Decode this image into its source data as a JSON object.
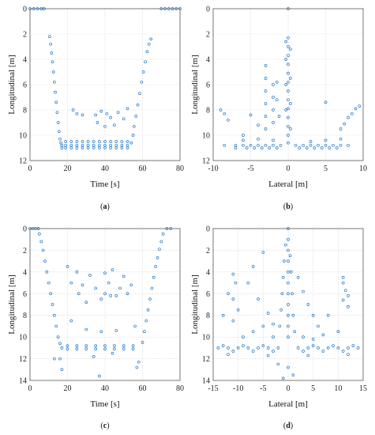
{
  "colors": {
    "marker": "#1f77c8",
    "grid": "#d9d9d9",
    "axes": "#555555"
  },
  "chart_data": [
    {
      "panel_label": "(a)",
      "type": "scatter",
      "xlabel": "Time [s]",
      "ylabel": "Longitudinal [m]",
      "xlim": [
        0,
        80
      ],
      "ylim": [
        0,
        12
      ],
      "y_reversed": true,
      "xticks": [
        "0",
        "20",
        "40",
        "60",
        "80"
      ],
      "yticks": [
        "0",
        "2",
        "4",
        "6",
        "8",
        "10",
        "12"
      ],
      "grid": true,
      "points": [
        [
          0,
          0
        ],
        [
          2,
          0
        ],
        [
          4,
          0
        ],
        [
          6,
          0
        ],
        [
          7.5,
          0
        ],
        [
          70,
          0
        ],
        [
          72,
          0
        ],
        [
          74,
          0
        ],
        [
          76,
          0
        ],
        [
          78,
          0
        ],
        [
          80,
          0
        ],
        [
          10.5,
          2.2
        ],
        [
          11,
          2.8
        ],
        [
          11.5,
          3.5
        ],
        [
          12,
          4.2
        ],
        [
          12.5,
          5
        ],
        [
          13,
          5.8
        ],
        [
          13.5,
          6.6
        ],
        [
          14,
          7.4
        ],
        [
          14.5,
          8.2
        ],
        [
          15,
          9
        ],
        [
          15.5,
          9.7
        ],
        [
          16,
          10.3
        ],
        [
          16.5,
          10.6
        ],
        [
          17,
          10.8
        ],
        [
          17,
          11
        ],
        [
          19,
          10.5
        ],
        [
          19,
          10.8
        ],
        [
          19,
          11
        ],
        [
          22,
          10.5
        ],
        [
          22,
          10.8
        ],
        [
          22,
          11
        ],
        [
          25,
          10.5
        ],
        [
          25,
          10.8
        ],
        [
          25,
          11
        ],
        [
          28,
          10.5
        ],
        [
          28,
          10.8
        ],
        [
          28,
          11
        ],
        [
          31,
          10.5
        ],
        [
          31,
          10.8
        ],
        [
          31,
          11
        ],
        [
          34,
          10.5
        ],
        [
          34,
          10.8
        ],
        [
          34,
          11
        ],
        [
          37,
          10.5
        ],
        [
          37,
          10.8
        ],
        [
          37,
          11
        ],
        [
          40,
          10.5
        ],
        [
          40,
          10.8
        ],
        [
          40,
          11
        ],
        [
          43,
          10.5
        ],
        [
          43,
          10.8
        ],
        [
          43,
          11
        ],
        [
          46,
          10.5
        ],
        [
          46,
          10.8
        ],
        [
          46,
          11
        ],
        [
          49,
          10.5
        ],
        [
          49,
          10.8
        ],
        [
          49,
          11
        ],
        [
          52,
          10.5
        ],
        [
          52,
          10.8
        ],
        [
          52,
          11
        ],
        [
          54,
          10.6
        ],
        [
          55,
          10
        ],
        [
          55.5,
          9.3
        ],
        [
          56.5,
          8.5
        ],
        [
          57.5,
          7.6
        ],
        [
          58.5,
          6.7
        ],
        [
          59.5,
          5.8
        ],
        [
          60.5,
          5
        ],
        [
          61.5,
          4.2
        ],
        [
          62.5,
          3.4
        ],
        [
          63.5,
          2.8
        ],
        [
          64.5,
          2.4
        ],
        [
          23,
          8
        ],
        [
          25,
          8.3
        ],
        [
          28,
          8.4
        ],
        [
          35,
          8.4
        ],
        [
          38,
          8.1
        ],
        [
          41,
          8.3
        ],
        [
          43,
          8.6
        ],
        [
          45,
          9.2
        ],
        [
          47,
          8.2
        ],
        [
          50,
          8.7
        ],
        [
          52,
          7.9
        ],
        [
          40,
          9.3
        ],
        [
          36,
          9
        ]
      ]
    },
    {
      "panel_label": "(b)",
      "type": "scatter",
      "xlabel": "Lateral [m]",
      "ylabel": "Longitudinal [m]",
      "xlim": [
        -10,
        10
      ],
      "ylim": [
        0,
        12
      ],
      "y_reversed": true,
      "xticks": [
        "-10",
        "-5",
        "0",
        "5",
        "10"
      ],
      "yticks": [
        "0",
        "2",
        "4",
        "6",
        "8",
        "10",
        "12"
      ],
      "grid": true,
      "points": [
        [
          0,
          0
        ],
        [
          0,
          2.3
        ],
        [
          0,
          3
        ],
        [
          0,
          3.7
        ],
        [
          0,
          4.4
        ],
        [
          0,
          5.1
        ],
        [
          0,
          5.8
        ],
        [
          0,
          6.5
        ],
        [
          0,
          7.2
        ],
        [
          0,
          7.9
        ],
        [
          0,
          8.6
        ],
        [
          0,
          9.3
        ],
        [
          0,
          10
        ],
        [
          0,
          10.6
        ],
        [
          -0.3,
          2.6
        ],
        [
          -0.3,
          4
        ],
        [
          -0.3,
          6
        ],
        [
          -0.3,
          8
        ],
        [
          0.3,
          3.2
        ],
        [
          0.3,
          5.5
        ],
        [
          0.3,
          7.5
        ],
        [
          0.3,
          9.5
        ],
        [
          -3,
          4.5
        ],
        [
          -3,
          5.5
        ],
        [
          -3,
          6.5
        ],
        [
          -3,
          7.5
        ],
        [
          -3,
          8.5
        ],
        [
          -3,
          9.5
        ],
        [
          -2,
          6
        ],
        [
          -2,
          7
        ],
        [
          -2,
          8
        ],
        [
          -2,
          9
        ],
        [
          -1.5,
          5.8
        ],
        [
          -1.5,
          7.2
        ],
        [
          -1.2,
          8.5
        ],
        [
          -9,
          8
        ],
        [
          -8.5,
          8.3
        ],
        [
          -8,
          8.8
        ],
        [
          -5,
          8.4
        ],
        [
          -4,
          9.2
        ],
        [
          -6,
          10
        ],
        [
          -7,
          10.8
        ],
        [
          -8.5,
          10.8
        ],
        [
          -6,
          10.8
        ],
        [
          -5,
          10.8
        ],
        [
          -4,
          10.8
        ],
        [
          -3,
          10.8
        ],
        [
          -2,
          10.8
        ],
        [
          -1,
          10.8
        ],
        [
          1,
          10.8
        ],
        [
          2,
          10.8
        ],
        [
          3,
          10.8
        ],
        [
          4,
          10.8
        ],
        [
          5,
          10.8
        ],
        [
          6,
          10.8
        ],
        [
          7,
          10.8
        ],
        [
          8,
          10.8
        ],
        [
          -7,
          11
        ],
        [
          -5.5,
          11
        ],
        [
          -4.5,
          11
        ],
        [
          -3.5,
          11
        ],
        [
          -2.5,
          11
        ],
        [
          -1.5,
          11
        ],
        [
          1.5,
          11
        ],
        [
          2.5,
          11
        ],
        [
          3.5,
          11
        ],
        [
          4.5,
          11
        ],
        [
          5.5,
          11
        ],
        [
          6.5,
          11
        ],
        [
          -6,
          10.4
        ],
        [
          -4,
          10.3
        ],
        [
          -2,
          10.4
        ],
        [
          3,
          10.5
        ],
        [
          5,
          10.4
        ],
        [
          7,
          10.3
        ],
        [
          5,
          7.4
        ],
        [
          7,
          9.5
        ],
        [
          7.5,
          9.1
        ],
        [
          8,
          8.6
        ],
        [
          8.5,
          8.3
        ],
        [
          9,
          7.9
        ],
        [
          9.5,
          7.7
        ]
      ]
    },
    {
      "panel_label": "(c)",
      "type": "scatter",
      "xlabel": "Time [s]",
      "ylabel": "Longitudinal [m]",
      "xlim": [
        0,
        80
      ],
      "ylim": [
        0,
        14
      ],
      "y_reversed": true,
      "xticks": [
        "0",
        "20",
        "40",
        "60",
        "80"
      ],
      "yticks": [
        "0",
        "2",
        "4",
        "6",
        "8",
        "10",
        "12",
        "14"
      ],
      "grid": true,
      "points": [
        [
          0,
          0
        ],
        [
          1.5,
          0
        ],
        [
          3,
          0
        ],
        [
          4.5,
          0
        ],
        [
          73,
          0
        ],
        [
          75,
          0
        ],
        [
          5,
          0.5
        ],
        [
          6,
          1.2
        ],
        [
          7,
          2
        ],
        [
          8,
          3
        ],
        [
          9,
          4
        ],
        [
          10,
          5
        ],
        [
          11,
          6
        ],
        [
          12,
          7
        ],
        [
          13,
          8
        ],
        [
          14,
          9
        ],
        [
          15,
          10
        ],
        [
          16,
          10.6
        ],
        [
          17,
          11
        ],
        [
          60,
          10.5
        ],
        [
          61,
          9.5
        ],
        [
          62,
          8.5
        ],
        [
          63,
          7.5
        ],
        [
          64,
          6.5
        ],
        [
          65,
          5.5
        ],
        [
          66,
          4.5
        ],
        [
          67,
          3.5
        ],
        [
          68,
          2.7
        ],
        [
          69,
          1.9
        ],
        [
          70,
          1.2
        ],
        [
          71,
          0.5
        ],
        [
          20,
          10.8
        ],
        [
          20,
          11.1
        ],
        [
          25,
          10.8
        ],
        [
          25,
          11.1
        ],
        [
          30,
          10.8
        ],
        [
          30,
          11.1
        ],
        [
          35,
          10.8
        ],
        [
          35,
          11.1
        ],
        [
          40,
          10.8
        ],
        [
          40,
          11.1
        ],
        [
          45,
          10.8
        ],
        [
          45,
          11.1
        ],
        [
          50,
          10.8
        ],
        [
          50,
          11.1
        ],
        [
          55,
          10.8
        ],
        [
          55,
          11.1
        ],
        [
          20,
          3.5
        ],
        [
          22,
          5
        ],
        [
          25,
          4
        ],
        [
          26,
          6
        ],
        [
          28,
          5.2
        ],
        [
          30,
          6.8
        ],
        [
          32,
          4.3
        ],
        [
          35,
          5.5
        ],
        [
          38,
          6.5
        ],
        [
          40,
          4.1
        ],
        [
          42,
          5
        ],
        [
          44,
          3.8
        ],
        [
          46,
          6.2
        ],
        [
          48,
          5.5
        ],
        [
          50,
          4.4
        ],
        [
          52,
          6
        ],
        [
          54,
          5.2
        ],
        [
          40,
          6
        ],
        [
          43,
          6.2
        ],
        [
          30,
          9.3
        ],
        [
          38,
          9.5
        ],
        [
          46,
          9.4
        ],
        [
          56,
          9
        ],
        [
          22,
          8.5
        ],
        [
          13,
          12
        ],
        [
          16,
          12
        ],
        [
          17,
          13
        ],
        [
          58,
          12.3
        ],
        [
          57,
          12.8
        ],
        [
          34,
          11.8
        ],
        [
          44,
          11.5
        ],
        [
          37,
          13.6
        ]
      ]
    },
    {
      "panel_label": "(d)",
      "type": "scatter",
      "xlabel": "Lateral [m]",
      "ylabel": "Longitudinal [m]",
      "xlim": [
        -15,
        15
      ],
      "ylim": [
        0,
        14
      ],
      "y_reversed": true,
      "xticks": [
        "-15",
        "-10",
        "-5",
        "0",
        "5",
        "10",
        "15"
      ],
      "yticks": [
        "0",
        "2",
        "4",
        "6",
        "8",
        "10",
        "12",
        "14"
      ],
      "grid": true,
      "points": [
        [
          0,
          0
        ],
        [
          0,
          1
        ],
        [
          0,
          2
        ],
        [
          0,
          3
        ],
        [
          0,
          4
        ],
        [
          0,
          5
        ],
        [
          0,
          6
        ],
        [
          0,
          7
        ],
        [
          0,
          8
        ],
        [
          0,
          9
        ],
        [
          0,
          10
        ],
        [
          -0.5,
          1.5
        ],
        [
          -0.8,
          3
        ],
        [
          -1,
          4.5
        ],
        [
          -1.2,
          6
        ],
        [
          -1.4,
          7.5
        ],
        [
          -1.7,
          9
        ],
        [
          0.4,
          2.5
        ],
        [
          0.6,
          4
        ],
        [
          0.8,
          6
        ],
        [
          1,
          8
        ],
        [
          1.3,
          9.5
        ],
        [
          -11,
          4.2
        ],
        [
          -10.5,
          5
        ],
        [
          -12,
          6
        ],
        [
          -11,
          6.5
        ],
        [
          -10,
          7.5
        ],
        [
          -11,
          8.5
        ],
        [
          -13,
          8
        ],
        [
          11,
          5
        ],
        [
          11.5,
          5.7
        ],
        [
          12,
          6.2
        ],
        [
          11,
          6.6
        ],
        [
          12,
          7.2
        ],
        [
          11,
          4.5
        ],
        [
          -5,
          2.2
        ],
        [
          -7,
          3.5
        ],
        [
          -8,
          5
        ],
        [
          -6,
          6.5
        ],
        [
          -4,
          7.8
        ],
        [
          -3,
          8.8
        ],
        [
          2,
          4.5
        ],
        [
          3,
          5.8
        ],
        [
          4,
          7
        ],
        [
          5,
          8
        ],
        [
          6,
          9
        ],
        [
          8,
          8
        ],
        [
          10,
          9.5
        ],
        [
          -9,
          10
        ],
        [
          -7,
          9.5
        ],
        [
          -5,
          9
        ],
        [
          -3,
          10
        ],
        [
          3,
          10
        ],
        [
          5,
          10.2
        ],
        [
          7,
          9.8
        ],
        [
          -14,
          11
        ],
        [
          -12,
          11
        ],
        [
          -10,
          11
        ],
        [
          -8,
          11
        ],
        [
          -6,
          11
        ],
        [
          -4,
          11
        ],
        [
          -2,
          11
        ],
        [
          2,
          11
        ],
        [
          4,
          11
        ],
        [
          6,
          11
        ],
        [
          8,
          11
        ],
        [
          10,
          11
        ],
        [
          12,
          11
        ],
        [
          14,
          11
        ],
        [
          -13,
          10.8
        ],
        [
          -11,
          11.3
        ],
        [
          -9,
          10.8
        ],
        [
          -7,
          11.3
        ],
        [
          -5,
          10.8
        ],
        [
          -3,
          11.3
        ],
        [
          3,
          11.3
        ],
        [
          5,
          10.8
        ],
        [
          7,
          11.3
        ],
        [
          9,
          10.8
        ],
        [
          11,
          11.3
        ],
        [
          13,
          10.8
        ],
        [
          -12,
          11.6
        ],
        [
          -4,
          11.7
        ],
        [
          4,
          11.7
        ],
        [
          12,
          11.6
        ],
        [
          -2,
          12.5
        ],
        [
          0,
          12.8
        ],
        [
          1,
          13.5
        ],
        [
          -1,
          13.8
        ]
      ]
    }
  ]
}
